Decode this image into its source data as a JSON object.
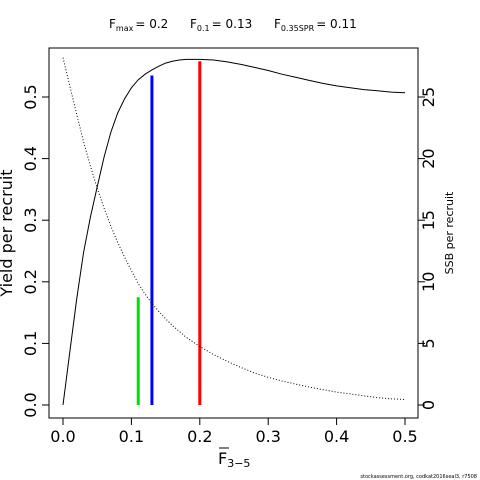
{
  "header": {
    "fmax": {
      "main": "F",
      "sub": "max",
      "value": "= 0.2"
    },
    "f01": {
      "main": "F",
      "sub": "0.1",
      "value": "= 0.13"
    },
    "fspr": {
      "main": "F",
      "sub": "0.35SPR",
      "value": "= 0.11"
    }
  },
  "caption": "stockassessment.org, codkat2016seal3, r7508",
  "chart_data": {
    "type": "line",
    "xlabel": {
      "main": "F",
      "sub": "3−5",
      "overline": true
    },
    "ylabel": "Yield per recruit",
    "y2label": "SSB per recruit",
    "xlim": [
      0,
      0.5
    ],
    "ylim": [
      0,
      0.57
    ],
    "y2lim": [
      0,
      28
    ],
    "x_ticks": [
      "0.0",
      "0.1",
      "0.2",
      "0.3",
      "0.4",
      "0.5"
    ],
    "y_ticks": [
      "0.0",
      "0.1",
      "0.2",
      "0.3",
      "0.4",
      "0.5"
    ],
    "y2_ticks": [
      "0",
      "5",
      "10",
      "15",
      "20",
      "25"
    ],
    "series": [
      {
        "axis": "left",
        "style": "solid",
        "color": "#000000",
        "x": [
          0.0,
          0.01,
          0.02,
          0.03,
          0.04,
          0.05,
          0.06,
          0.07,
          0.08,
          0.09,
          0.1,
          0.11,
          0.12,
          0.13,
          0.14,
          0.15,
          0.16,
          0.17,
          0.18,
          0.19,
          0.2,
          0.22,
          0.24,
          0.26,
          0.28,
          0.3,
          0.32,
          0.34,
          0.36,
          0.38,
          0.4,
          0.42,
          0.44,
          0.46,
          0.48,
          0.5
        ],
        "y": [
          0.0,
          0.086,
          0.172,
          0.247,
          0.305,
          0.354,
          0.402,
          0.443,
          0.474,
          0.497,
          0.515,
          0.528,
          0.537,
          0.544,
          0.55,
          0.555,
          0.558,
          0.56,
          0.561,
          0.561,
          0.561,
          0.56,
          0.557,
          0.553,
          0.548,
          0.543,
          0.537,
          0.532,
          0.527,
          0.522,
          0.518,
          0.515,
          0.512,
          0.51,
          0.508,
          0.507
        ]
      },
      {
        "axis": "right",
        "style": "dotted",
        "color": "#000000",
        "x": [
          0.0,
          0.01,
          0.02,
          0.03,
          0.04,
          0.05,
          0.06,
          0.07,
          0.08,
          0.09,
          0.1,
          0.11,
          0.12,
          0.13,
          0.14,
          0.15,
          0.16,
          0.18,
          0.2,
          0.22,
          0.24,
          0.26,
          0.28,
          0.3,
          0.32,
          0.34,
          0.36,
          0.38,
          0.4,
          0.42,
          0.44,
          0.46,
          0.48,
          0.5
        ],
        "y": [
          28.2,
          25.9,
          23.6,
          21.4,
          19.4,
          17.6,
          16.0,
          14.5,
          13.2,
          12.0,
          10.9,
          9.85,
          9.0,
          8.25,
          7.6,
          7.0,
          6.45,
          5.5,
          4.75,
          4.1,
          3.55,
          3.05,
          2.6,
          2.25,
          1.95,
          1.7,
          1.45,
          1.25,
          1.05,
          0.9,
          0.75,
          0.6,
          0.5,
          0.45
        ]
      }
    ],
    "reference_lines": [
      {
        "label": "F0.35SPR",
        "x": 0.11,
        "y_top": 0.175,
        "color": "#00e000"
      },
      {
        "label": "F0.1",
        "x": 0.13,
        "y_top": 0.535,
        "color": "#0000ff"
      },
      {
        "label": "Fmax",
        "x": 0.2,
        "y_top": 0.558,
        "color": "#ff0000"
      }
    ]
  }
}
